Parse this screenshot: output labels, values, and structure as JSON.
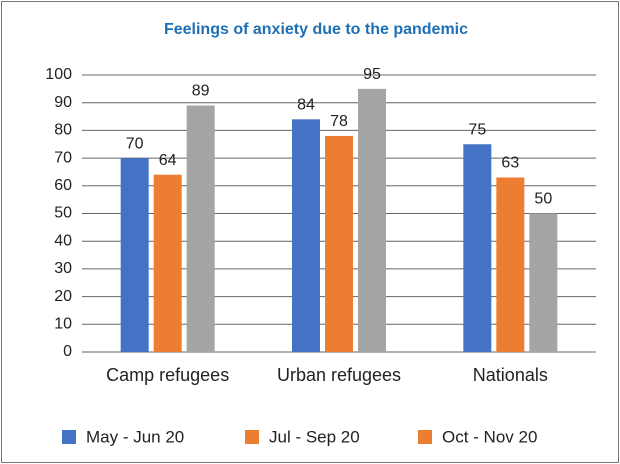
{
  "chart_data": {
    "type": "bar",
    "title": "Feelings of anxiety due to the pandemic",
    "categories": [
      "Camp refugees",
      "Urban refugees",
      "Nationals"
    ],
    "series": [
      {
        "name": "May - Jun 20",
        "color": "#4472c4",
        "values": [
          70,
          84,
          75
        ]
      },
      {
        "name": "Jul - Sep 20",
        "color": "#ed7d31",
        "values": [
          64,
          78,
          63
        ]
      },
      {
        "name": "Oct - Nov 20",
        "color": "#a5a5a5",
        "legend_color": "#ed7d31",
        "values": [
          89,
          95,
          50
        ]
      }
    ],
    "ylim": [
      0,
      100
    ],
    "yticks": [
      0,
      10,
      20,
      30,
      40,
      50,
      60,
      70,
      80,
      90,
      100
    ],
    "grid": true,
    "legend": "bottom"
  }
}
